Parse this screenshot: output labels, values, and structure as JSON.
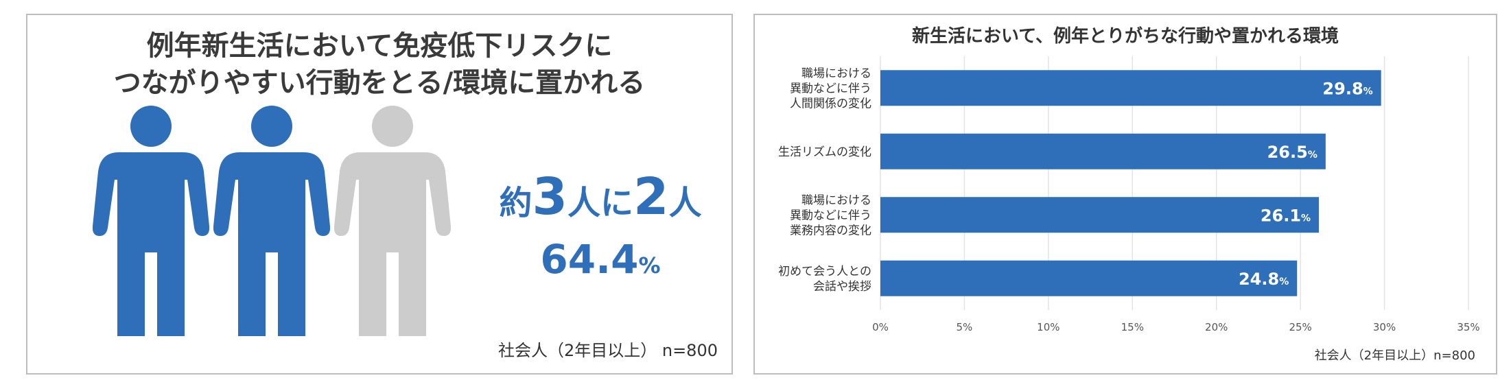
{
  "infographic": {
    "title_line1": "例年新生活において免疫低下リスクに",
    "title_line2": "つながりやすい行動をとる/環境に置かれる",
    "stat_prefix": "約",
    "stat_num1": "3",
    "stat_mid": "人に",
    "stat_num2": "2",
    "stat_suffix": "人",
    "percent_value": "64.4",
    "percent_unit": "%",
    "figures": [
      "blue",
      "blue",
      "gray"
    ],
    "note": "社会人（2年目以上） n=800",
    "colors": {
      "accent": "#2f6fba",
      "inactive": "#cccccc"
    }
  },
  "chart_data": {
    "type": "bar",
    "orientation": "horizontal",
    "title": "新生活において、例年とりがちな行動や置かれる環境",
    "categories": [
      [
        "職場における",
        "異動などに伴う",
        "人間関係の変化"
      ],
      [
        "生活リズムの変化"
      ],
      [
        "職場における",
        "異動などに伴う",
        "業務内容の変化"
      ],
      [
        "初めて会う人との",
        "会話や挨拶"
      ]
    ],
    "values": [
      29.8,
      26.5,
      26.1,
      24.8
    ],
    "value_labels": [
      "29.8",
      "26.5",
      "26.1",
      "24.8"
    ],
    "value_unit": "%",
    "xlim": [
      0,
      35
    ],
    "xticks": [
      "0%",
      "5%",
      "10%",
      "15%",
      "20%",
      "25%",
      "30%",
      "35%"
    ],
    "grid": true,
    "note": "社会人（2年目以上）n=800",
    "bar_color": "#2f6fba"
  }
}
